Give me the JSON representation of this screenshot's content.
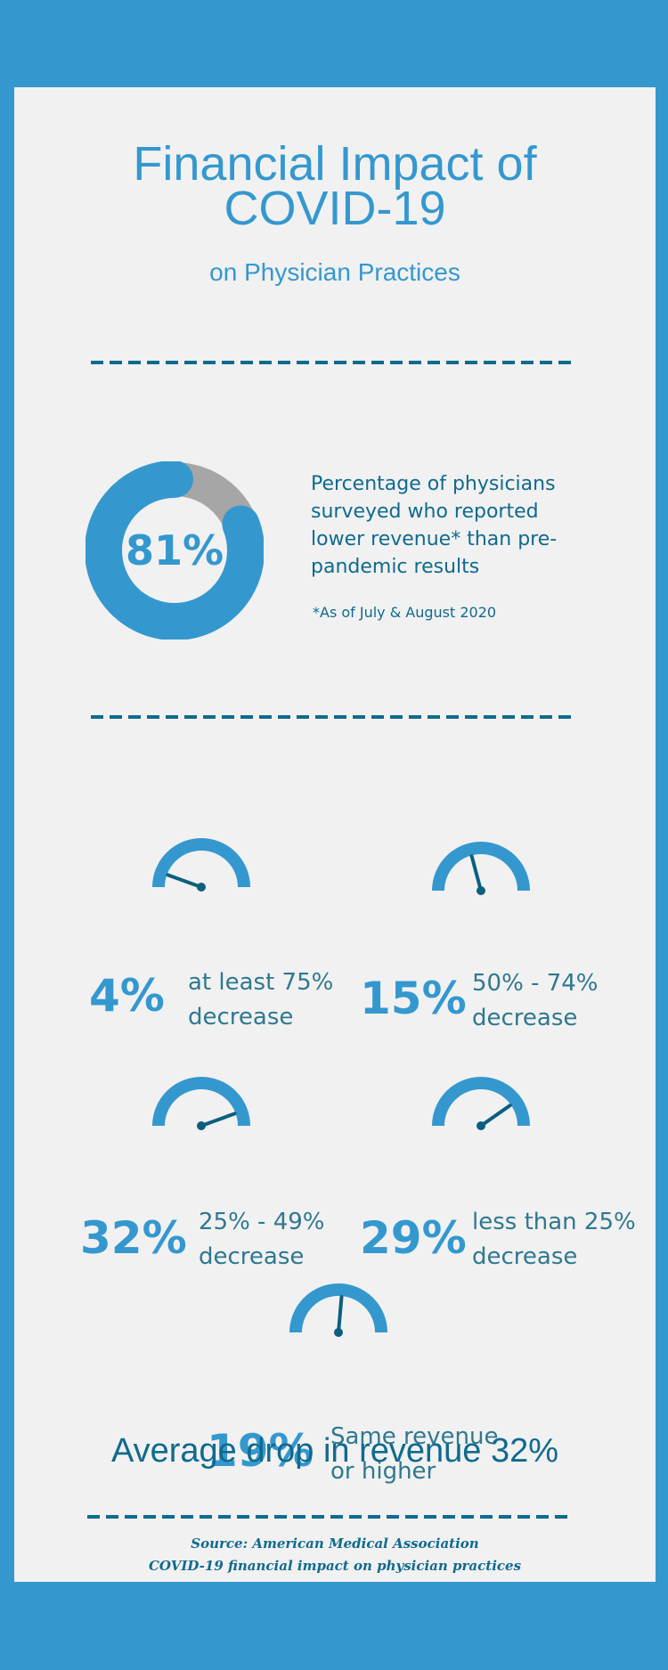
{
  "header": {
    "title_line1": "Financial Impact of",
    "title_line2": "COVID-19",
    "subtitle": "on Physician Practices"
  },
  "headline_stat": {
    "value": "81%",
    "percent": 81,
    "description": "Percentage of physicians surveyed who reported lower revenue* than pre-pandemic results",
    "footnote": "*As of July & August 2020"
  },
  "breakdown": [
    {
      "value": "4%",
      "percent": 4,
      "label_line1": "at least 75%",
      "label_line2": "decrease"
    },
    {
      "value": "15%",
      "percent": 15,
      "label_line1": "50% - 74%",
      "label_line2": "decrease"
    },
    {
      "value": "32%",
      "percent": 32,
      "label_line1": "25% - 49%",
      "label_line2": "decrease"
    },
    {
      "value": "29%",
      "percent": 29,
      "label_line1": "less than 25%",
      "label_line2": "decrease"
    },
    {
      "value": "19%",
      "percent": 19,
      "label_line1": "Same revenue",
      "label_line2": "or higher"
    }
  ],
  "average": "Average drop in revenue 32%",
  "source_line1": "Source: American Medical Association",
  "source_line2": "COVID-19 financial impact on physician practices",
  "colors": {
    "background": "#3498cf",
    "card": "#f1f1f1",
    "accent": "#3498cf",
    "dark_accent": "#0f6a8e",
    "donut_remainder": "#a6a6a6",
    "needle": "#0b5f80"
  }
}
